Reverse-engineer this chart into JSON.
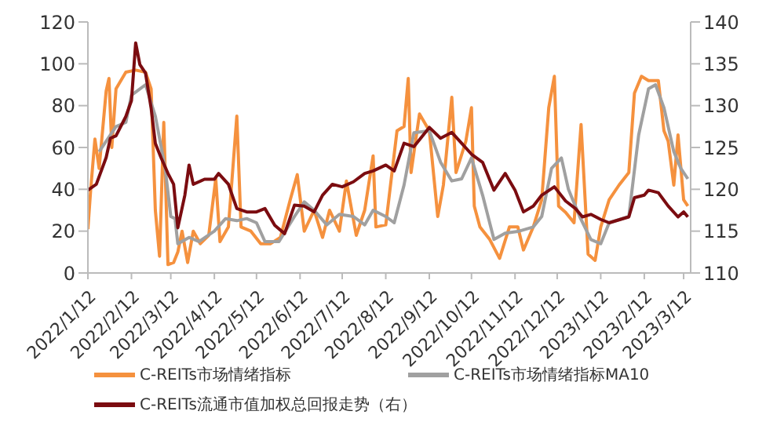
{
  "chart_data": {
    "type": "line",
    "legend": "bottom",
    "grid": false,
    "marker": "none",
    "line_style": "solid",
    "xlim": [
      "2022-01-12",
      "2023-03-17"
    ],
    "xticks": [
      {
        "value": "2022-01-12",
        "label": "2022/1/12"
      },
      {
        "value": "2022-02-12",
        "label": "2022/2/12"
      },
      {
        "value": "2022-03-12",
        "label": "2022/3/12"
      },
      {
        "value": "2022-04-12",
        "label": "2022/4/12"
      },
      {
        "value": "2022-05-12",
        "label": "2022/5/12"
      },
      {
        "value": "2022-06-12",
        "label": "2022/6/12"
      },
      {
        "value": "2022-07-12",
        "label": "2022/7/12"
      },
      {
        "value": "2022-08-12",
        "label": "2022/8/12"
      },
      {
        "value": "2022-09-12",
        "label": "2022/9/12"
      },
      {
        "value": "2022-10-12",
        "label": "2022/10/12"
      },
      {
        "value": "2022-11-12",
        "label": "2022/11/12"
      },
      {
        "value": "2022-12-12",
        "label": "2022/12/12"
      },
      {
        "value": "2023-01-12",
        "label": "2023/1/12"
      },
      {
        "value": "2023-02-12",
        "label": "2023/2/12"
      },
      {
        "value": "2023-03-12",
        "label": "2023/3/12"
      }
    ],
    "ylim": [
      0,
      120
    ],
    "yticks": [
      0,
      20,
      40,
      60,
      80,
      100,
      120
    ],
    "y2lim": [
      110,
      140
    ],
    "y2ticks": [
      110,
      115,
      120,
      125,
      130,
      135,
      140
    ],
    "series": [
      {
        "name": "C-REITs市场情绪指标",
        "color": "#f5913e",
        "x": [
          "2022-01-12",
          "2022-01-14",
          "2022-01-17",
          "2022-01-20",
          "2022-01-25",
          "2022-01-27",
          "2022-01-29",
          "2022-02-01",
          "2022-02-08",
          "2022-02-15",
          "2022-02-22",
          "2022-02-26",
          "2022-03-01",
          "2022-03-04",
          "2022-03-07",
          "2022-03-10",
          "2022-03-14",
          "2022-03-17",
          "2022-03-20",
          "2022-03-24",
          "2022-03-28",
          "2022-04-02",
          "2022-04-08",
          "2022-04-13",
          "2022-04-16",
          "2022-04-22",
          "2022-04-28",
          "2022-05-01",
          "2022-05-08",
          "2022-05-15",
          "2022-05-22",
          "2022-05-29",
          "2022-06-05",
          "2022-06-10",
          "2022-06-15",
          "2022-06-22",
          "2022-06-28",
          "2022-07-03",
          "2022-07-10",
          "2022-07-15",
          "2022-07-22",
          "2022-07-28",
          "2022-08-03",
          "2022-08-05",
          "2022-08-12",
          "2022-08-20",
          "2022-08-25",
          "2022-08-28",
          "2022-08-30",
          "2022-09-05",
          "2022-09-12",
          "2022-09-18",
          "2022-09-22",
          "2022-09-28",
          "2022-10-01",
          "2022-10-08",
          "2022-10-12",
          "2022-10-14",
          "2022-10-18",
          "2022-10-25",
          "2022-11-01",
          "2022-11-08",
          "2022-11-14",
          "2022-11-18",
          "2022-11-25",
          "2022-12-01",
          "2022-12-06",
          "2022-12-10",
          "2022-12-13",
          "2022-12-18",
          "2022-12-24",
          "2022-12-29",
          "2023-01-03",
          "2023-01-08",
          "2023-01-12",
          "2023-01-18",
          "2023-01-25",
          "2023-02-01",
          "2023-02-05",
          "2023-02-10",
          "2023-02-15",
          "2023-02-22",
          "2023-02-26",
          "2023-03-01",
          "2023-03-05",
          "2023-03-08",
          "2023-03-12",
          "2023-03-15"
        ],
        "values": [
          21,
          40,
          64,
          50,
          87,
          93,
          60,
          88,
          96,
          97,
          96,
          88,
          30,
          8,
          72,
          4,
          5,
          10,
          20,
          5,
          20,
          14,
          18,
          45,
          15,
          22,
          75,
          22,
          20,
          14,
          14,
          17,
          35,
          47,
          20,
          30,
          17,
          30,
          20,
          44,
          18,
          30,
          56,
          22,
          23,
          68,
          70,
          93,
          48,
          76,
          68,
          27,
          42,
          84,
          48,
          63,
          79,
          32,
          22,
          16,
          7,
          22,
          22,
          11,
          22,
          35,
          79,
          94,
          32,
          29,
          24,
          71,
          9,
          6,
          22,
          35,
          42,
          48,
          86,
          94,
          92,
          92,
          68,
          63,
          42,
          66,
          35,
          32
        ]
      },
      {
        "name": "C-REITs市场情绪指标MA10",
        "color": "#a0a0a0",
        "x": [
          "2022-01-20",
          "2022-02-01",
          "2022-02-08",
          "2022-02-12",
          "2022-02-18",
          "2022-02-22",
          "2022-03-01",
          "2022-03-08",
          "2022-03-12",
          "2022-03-15",
          "2022-03-17",
          "2022-03-25",
          "2022-04-01",
          "2022-04-12",
          "2022-04-20",
          "2022-04-28",
          "2022-05-05",
          "2022-05-12",
          "2022-05-18",
          "2022-05-28",
          "2022-06-08",
          "2022-06-15",
          "2022-06-22",
          "2022-07-01",
          "2022-07-10",
          "2022-07-20",
          "2022-07-28",
          "2022-08-03",
          "2022-08-12",
          "2022-08-18",
          "2022-08-25",
          "2022-09-01",
          "2022-09-12",
          "2022-09-20",
          "2022-09-28",
          "2022-10-05",
          "2022-10-12",
          "2022-10-20",
          "2022-10-28",
          "2022-11-05",
          "2022-11-15",
          "2022-11-25",
          "2022-12-01",
          "2022-12-08",
          "2022-12-15",
          "2022-12-20",
          "2022-12-28",
          "2023-01-05",
          "2023-01-12",
          "2023-01-18",
          "2023-02-01",
          "2023-02-08",
          "2023-02-15",
          "2023-02-20",
          "2023-02-26",
          "2023-03-05",
          "2023-03-10",
          "2023-03-15"
        ],
        "values": [
          58,
          70,
          72,
          85,
          88,
          90,
          75,
          50,
          27,
          26,
          14,
          17,
          15,
          20,
          26,
          25,
          26,
          24,
          15,
          15,
          27,
          34,
          30,
          23,
          28,
          27,
          23,
          30,
          27,
          24,
          42,
          67,
          68,
          53,
          44,
          45,
          55,
          37,
          16,
          19,
          20,
          22,
          27,
          50,
          55,
          40,
          27,
          16,
          14,
          24,
          27,
          66,
          88,
          90,
          79,
          58,
          50,
          45
        ]
      },
      {
        "name": "C-REITs流通市值加权总回报走势（右）",
        "color": "#7b0c10",
        "axis": "y2",
        "x": [
          "2022-01-12",
          "2022-01-18",
          "2022-01-25",
          "2022-01-28",
          "2022-02-01",
          "2022-02-08",
          "2022-02-12",
          "2022-02-15",
          "2022-02-18",
          "2022-02-22",
          "2022-02-26",
          "2022-03-01",
          "2022-03-05",
          "2022-03-10",
          "2022-03-14",
          "2022-03-17",
          "2022-03-22",
          "2022-03-25",
          "2022-03-28",
          "2022-04-05",
          "2022-04-12",
          "2022-04-15",
          "2022-04-22",
          "2022-04-28",
          "2022-05-05",
          "2022-05-12",
          "2022-05-18",
          "2022-05-25",
          "2022-06-01",
          "2022-06-08",
          "2022-06-15",
          "2022-06-22",
          "2022-06-28",
          "2022-07-05",
          "2022-07-12",
          "2022-07-20",
          "2022-07-28",
          "2022-08-03",
          "2022-08-12",
          "2022-08-18",
          "2022-08-25",
          "2022-09-01",
          "2022-09-12",
          "2022-09-20",
          "2022-09-28",
          "2022-10-05",
          "2022-10-12",
          "2022-10-20",
          "2022-10-28",
          "2022-11-05",
          "2022-11-12",
          "2022-11-18",
          "2022-11-25",
          "2022-12-01",
          "2022-12-10",
          "2022-12-18",
          "2022-12-25",
          "2022-12-30",
          "2023-01-05",
          "2023-01-12",
          "2023-01-18",
          "2023-02-01",
          "2023-02-05",
          "2023-02-12",
          "2023-02-15",
          "2023-02-22",
          "2023-03-01",
          "2023-03-08",
          "2023-03-12",
          "2023-03-15"
        ],
        "values": [
          119.9,
          120.6,
          123.8,
          126.1,
          126.4,
          128.7,
          130.6,
          137.5,
          134.9,
          133.9,
          129.7,
          125.5,
          123.8,
          121.9,
          120.6,
          115.4,
          119.3,
          122.9,
          120.6,
          121.2,
          121.2,
          121.9,
          120.6,
          117.7,
          117.3,
          117.3,
          117.7,
          115.7,
          114.7,
          118.1,
          118,
          117.3,
          119.3,
          120.6,
          120.3,
          120.9,
          121.9,
          122.2,
          122.9,
          122.2,
          125.5,
          125.1,
          127.4,
          126.1,
          126.8,
          125.5,
          124.2,
          123.2,
          119.9,
          121.9,
          119.9,
          117.3,
          118,
          119.3,
          120.3,
          118.6,
          117.7,
          116.7,
          117,
          116.4,
          116,
          116.7,
          119,
          119.3,
          119.9,
          119.6,
          118,
          116.7,
          117.3,
          116.7
        ]
      }
    ]
  }
}
